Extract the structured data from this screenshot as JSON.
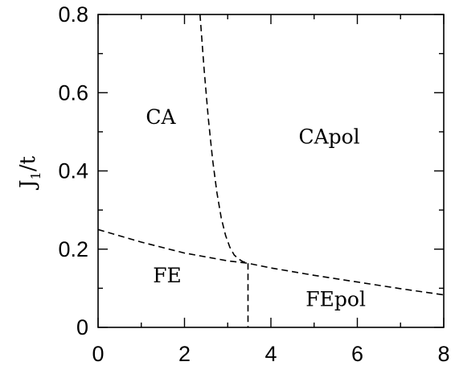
{
  "chart_data": {
    "type": "line",
    "title": "",
    "xlabel": "",
    "ylabel": "J1/t",
    "ylabel_parts": {
      "main": "J",
      "sub": "1",
      "rest": "/t"
    },
    "xlim": [
      0,
      8
    ],
    "ylim": [
      0,
      0.8
    ],
    "xticks": [
      0,
      2,
      4,
      6,
      8
    ],
    "xtick_labels": [
      "0",
      "2",
      "4",
      "6",
      "8"
    ],
    "yticks": [
      0,
      0.2,
      0.4,
      0.6,
      0.8
    ],
    "ytick_labels": [
      "0",
      "0.2",
      "0.4",
      "0.6",
      "0.8"
    ],
    "grid": false,
    "line_style": "dashed",
    "series": [
      {
        "x": [
          2.36,
          2.45,
          2.55,
          2.65,
          2.75,
          2.85,
          2.95,
          3.05,
          3.15,
          3.25,
          3.35,
          3.47
        ],
        "y": [
          0.8,
          0.665,
          0.535,
          0.43,
          0.345,
          0.28,
          0.235,
          0.205,
          0.185,
          0.175,
          0.168,
          0.164
        ]
      },
      {
        "x": [
          0,
          1,
          2,
          3,
          3.47,
          4,
          5,
          6,
          7,
          8
        ],
        "y": [
          0.25,
          0.218,
          0.19,
          0.17,
          0.164,
          0.152,
          0.133,
          0.116,
          0.099,
          0.083
        ]
      },
      {
        "x": [
          3.47,
          3.47
        ],
        "y": [
          0.164,
          0
        ]
      }
    ],
    "annotations": [
      {
        "text": "CA",
        "x": 1.45,
        "y": 0.52
      },
      {
        "text": "CApol",
        "x": 5.35,
        "y": 0.47
      },
      {
        "text": "FE",
        "x": 1.6,
        "y": 0.115
      },
      {
        "text": "FEpol",
        "x": 5.5,
        "y": 0.055
      }
    ]
  }
}
